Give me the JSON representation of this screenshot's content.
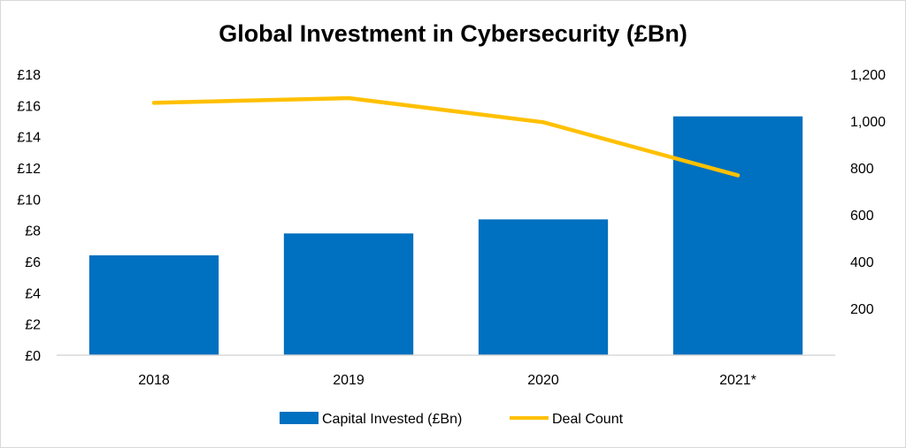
{
  "chart_data": {
    "type": "bar",
    "title": "Global Investment in Cybersecurity (£Bn)",
    "categories": [
      "2018",
      "2019",
      "2020",
      "2021*"
    ],
    "series": [
      {
        "name": "Capital Invested (£Bn)",
        "type": "bar",
        "axis": "left",
        "color": "#0070c0",
        "values": [
          6.4,
          7.8,
          8.7,
          15.3
        ]
      },
      {
        "name": "Deal Count",
        "type": "line",
        "axis": "right",
        "color": "#ffc000",
        "values": [
          1078,
          1098,
          995,
          768
        ]
      }
    ],
    "y_left": {
      "ylim": [
        0,
        18
      ],
      "ticks": [
        0,
        2,
        4,
        6,
        8,
        10,
        12,
        14,
        16,
        18
      ],
      "tick_labels": [
        "£0",
        "£2",
        "£4",
        "£6",
        "£8",
        "£10",
        "£12",
        "£14",
        "£16",
        "£18"
      ]
    },
    "y_right": {
      "ylim": [
        0,
        1200
      ],
      "ticks": [
        200,
        400,
        600,
        800,
        1000,
        1200
      ],
      "tick_labels": [
        "200",
        "400",
        "600",
        "800",
        "1,000",
        "1,200"
      ]
    },
    "grid": false,
    "legend": "bottom"
  }
}
